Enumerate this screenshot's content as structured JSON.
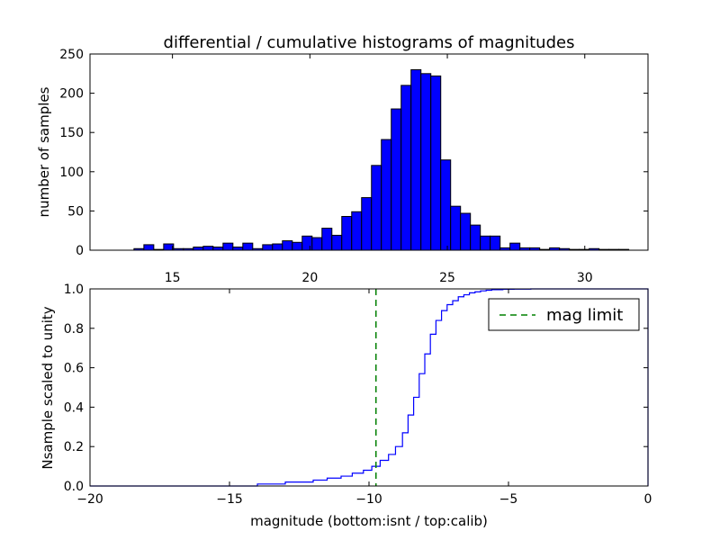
{
  "figure_title": "differential / cumulative histograms of magnitudes",
  "colors": {
    "bars": "#0000ff",
    "cdf": "#0000ff",
    "limit": "#008000",
    "axes": "#000000"
  },
  "chart_data": [
    {
      "type": "bar",
      "name": "differential histogram",
      "title": "differential / cumulative histograms of magnitudes",
      "xlabel": "",
      "ylabel": "number of samples",
      "xlim": [
        12.0,
        32.3
      ],
      "ylim": [
        0,
        250
      ],
      "x_tick_position": "bottom",
      "xticks": [
        15,
        20,
        25,
        30
      ],
      "yticks": [
        0,
        50,
        100,
        150,
        200,
        250
      ],
      "bin_width": 0.36,
      "bin_start": 13.6,
      "counts": [
        2,
        7,
        1,
        8,
        2,
        2,
        4,
        5,
        4,
        9,
        4,
        9,
        2,
        7,
        8,
        12,
        10,
        18,
        16,
        28,
        19,
        43,
        49,
        67,
        108,
        141,
        180,
        210,
        230,
        225,
        222,
        115,
        56,
        47,
        32,
        18,
        18,
        3,
        9,
        3,
        3,
        1,
        3,
        2,
        1,
        1,
        2,
        1,
        1,
        1
      ]
    },
    {
      "type": "line",
      "name": "cumulative histogram",
      "xlabel": "magnitude (bottom:isnt / top:calib)",
      "ylabel": "Nsample scaled to unity",
      "xlim": [
        -20,
        0
      ],
      "ylim": [
        0,
        1.0
      ],
      "xticks": [
        -20,
        -15,
        -10,
        -5,
        0
      ],
      "yticks": [
        0.0,
        0.2,
        0.4,
        0.6,
        0.8,
        1.0
      ],
      "step": true,
      "x": [
        -15.0,
        -14.0,
        -13.0,
        -12.0,
        -11.5,
        -11.0,
        -10.6,
        -10.2,
        -9.9,
        -9.6,
        -9.3,
        -9.05,
        -8.8,
        -8.6,
        -8.4,
        -8.2,
        -8.0,
        -7.8,
        -7.6,
        -7.4,
        -7.2,
        -7.0,
        -6.8,
        -6.6,
        -6.4,
        -6.2,
        -6.0,
        -5.8,
        -5.6,
        -5.2,
        -4.8,
        -4.2,
        0.0
      ],
      "y": [
        0.0,
        0.01,
        0.02,
        0.03,
        0.04,
        0.05,
        0.065,
        0.08,
        0.1,
        0.13,
        0.16,
        0.2,
        0.27,
        0.36,
        0.45,
        0.57,
        0.67,
        0.77,
        0.84,
        0.89,
        0.92,
        0.94,
        0.96,
        0.97,
        0.98,
        0.985,
        0.99,
        0.993,
        0.996,
        0.998,
        0.999,
        1.0,
        1.0
      ],
      "vline": {
        "x": -9.75,
        "style": "dashed",
        "label": "mag limit"
      },
      "legend": {
        "entries": [
          "mag limit"
        ],
        "placement": "top-right"
      }
    }
  ]
}
